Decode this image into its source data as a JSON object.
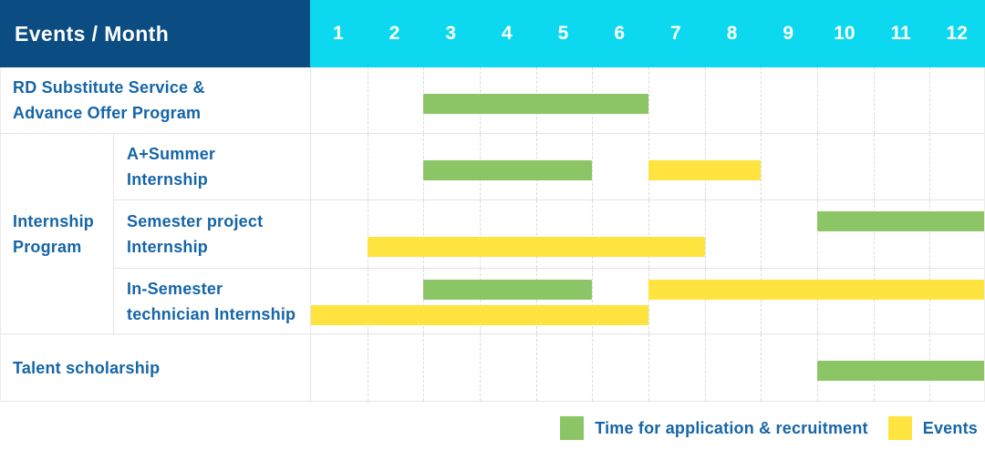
{
  "colors": {
    "header_navy": "#0b4d82",
    "header_cyan": "#0cd8ef",
    "application_green": "#8bc566",
    "event_yellow": "#ffe33e",
    "label_blue": "#1565a8",
    "grid_line": "#e4e4e4",
    "grid_dashed": "#d9d9d9"
  },
  "chart_data": {
    "type": "gantt",
    "corner_label": "Events / Month",
    "months": [
      "1",
      "2",
      "3",
      "4",
      "5",
      "6",
      "7",
      "8",
      "9",
      "10",
      "11",
      "12"
    ],
    "x_range": [
      1,
      12
    ],
    "legend_position": "bottom-right",
    "legend": [
      {
        "key": "application",
        "name": "Time for application & recruitment",
        "color": "#8bc566"
      },
      {
        "key": "event",
        "name": "Events",
        "color": "#ffe33e"
      }
    ],
    "rows": [
      {
        "group": "",
        "label": "RD Substitute Service & Advance Offer Program",
        "label_lines": [
          "RD Substitute Service &",
          "Advance Offer Program"
        ],
        "bars": [
          {
            "series": "application",
            "start_month": 3,
            "end_month": 6,
            "lane": "center"
          }
        ]
      },
      {
        "group": "Internship Program",
        "label": "A+Summer Internship",
        "label_lines": [
          "A+Summer",
          "Internship"
        ],
        "bars": [
          {
            "series": "application",
            "start_month": 3,
            "end_month": 5,
            "lane": "center"
          },
          {
            "series": "event",
            "start_month": 7,
            "end_month": 8,
            "lane": "center"
          }
        ]
      },
      {
        "group": "Internship Program",
        "label": "Semester project Internship",
        "label_lines": [
          "Semester project",
          "Internship"
        ],
        "bars": [
          {
            "series": "application",
            "start_month": 10,
            "end_month": 12,
            "lane": "top"
          },
          {
            "series": "event",
            "start_month": 2,
            "end_month": 7,
            "lane": "bottom"
          }
        ]
      },
      {
        "group": "Internship Program",
        "label": "In-Semester technician Internship",
        "label_lines": [
          "In-Semester",
          "technician Internship"
        ],
        "bars": [
          {
            "series": "application",
            "start_month": 3,
            "end_month": 5,
            "lane": "top"
          },
          {
            "series": "event",
            "start_month": 7,
            "end_month": 12,
            "lane": "top"
          },
          {
            "series": "event",
            "start_month": 1,
            "end_month": 6,
            "lane": "bottom"
          }
        ]
      },
      {
        "group": "",
        "label": "Talent scholarship",
        "label_lines": [
          "Talent scholarship"
        ],
        "bars": [
          {
            "series": "application",
            "start_month": 10,
            "end_month": 12,
            "lane": "center"
          }
        ]
      }
    ]
  }
}
